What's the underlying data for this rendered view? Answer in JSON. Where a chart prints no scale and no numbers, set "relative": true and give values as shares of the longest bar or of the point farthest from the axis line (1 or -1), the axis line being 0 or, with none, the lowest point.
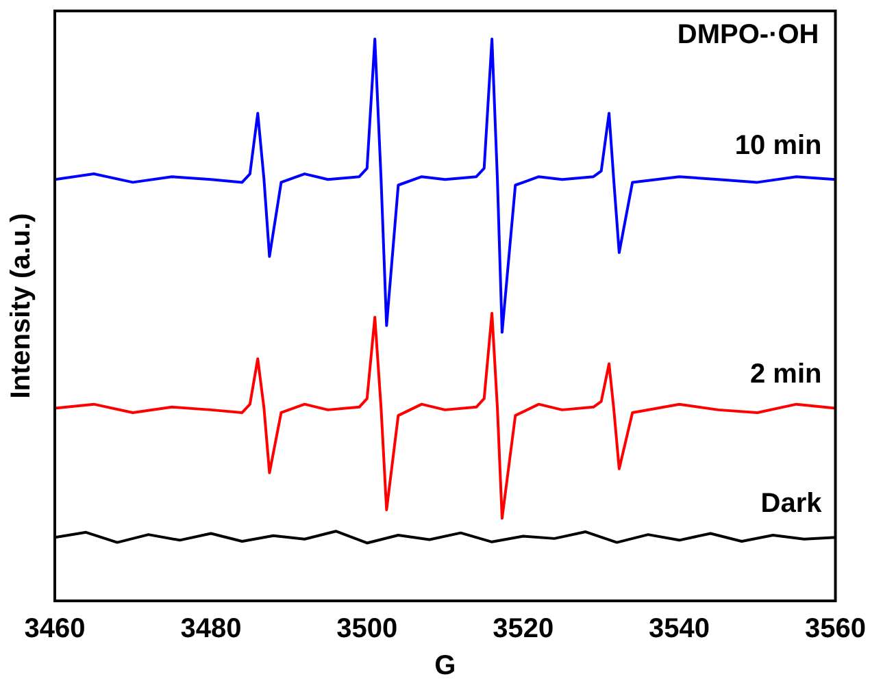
{
  "chart_data": {
    "type": "line",
    "relative": true,
    "xlabel": "G",
    "ylabel": "Intensity (a.u.)",
    "annotations": [
      "DMPO-·OH"
    ],
    "xlim": [
      3460,
      3560
    ],
    "xticks": [
      3460,
      3480,
      3500,
      3520,
      3540,
      3560
    ],
    "grid": false,
    "legend": false,
    "marker": "none",
    "line_style": "solid",
    "series": [
      {
        "name": "10 min",
        "color": "#0000ff",
        "x": [
          3460,
          3465,
          3470,
          3475,
          3480,
          3484,
          3485,
          3486,
          3486.8,
          3487.5,
          3489,
          3492,
          3495,
          3499,
          3500,
          3501,
          3501.8,
          3502.5,
          3504,
          3507,
          3510,
          3514,
          3515,
          3516,
          3516.7,
          3517.3,
          3519,
          3522,
          3525,
          3529,
          3530,
          3531,
          3531.6,
          3532.3,
          3534,
          3540,
          3545,
          3550,
          3555,
          3560
        ],
        "values": [
          0.75,
          0.76,
          0.745,
          0.755,
          0.75,
          0.745,
          0.76,
          0.868,
          0.75,
          0.613,
          0.745,
          0.76,
          0.75,
          0.755,
          0.77,
          1.0,
          0.75,
          0.49,
          0.74,
          0.755,
          0.75,
          0.755,
          0.77,
          1.0,
          0.75,
          0.478,
          0.74,
          0.755,
          0.75,
          0.755,
          0.765,
          0.868,
          0.75,
          0.62,
          0.745,
          0.755,
          0.75,
          0.745,
          0.755,
          0.75
        ]
      },
      {
        "name": "2 min",
        "color": "#ff0000",
        "x": [
          3460,
          3465,
          3470,
          3475,
          3480,
          3484,
          3485,
          3486,
          3486.8,
          3487.5,
          3489,
          3492,
          3495,
          3499,
          3500,
          3501,
          3501.8,
          3502.5,
          3504,
          3507,
          3510,
          3514,
          3515,
          3516,
          3516.7,
          3517.3,
          3519,
          3522,
          3525,
          3529,
          3530,
          3531,
          3531.6,
          3532.3,
          3534,
          3540,
          3545,
          3550,
          3555,
          3560
        ],
        "values": [
          0.343,
          0.35,
          0.335,
          0.345,
          0.34,
          0.335,
          0.35,
          0.431,
          0.343,
          0.228,
          0.335,
          0.35,
          0.34,
          0.345,
          0.36,
          0.505,
          0.343,
          0.162,
          0.33,
          0.35,
          0.34,
          0.345,
          0.36,
          0.512,
          0.343,
          0.147,
          0.33,
          0.35,
          0.34,
          0.345,
          0.355,
          0.422,
          0.343,
          0.235,
          0.335,
          0.35,
          0.34,
          0.335,
          0.35,
          0.343
        ]
      },
      {
        "name": "Dark",
        "color": "#000000",
        "x": [
          3460,
          3464,
          3468,
          3472,
          3476,
          3480,
          3484,
          3488,
          3492,
          3496,
          3500,
          3504,
          3508,
          3512,
          3516,
          3520,
          3524,
          3528,
          3532,
          3536,
          3540,
          3544,
          3548,
          3552,
          3556,
          3560
        ],
        "values": [
          0.113,
          0.122,
          0.104,
          0.118,
          0.108,
          0.12,
          0.106,
          0.116,
          0.11,
          0.124,
          0.103,
          0.117,
          0.109,
          0.121,
          0.105,
          0.115,
          0.111,
          0.123,
          0.104,
          0.118,
          0.108,
          0.12,
          0.106,
          0.117,
          0.11,
          0.113
        ]
      }
    ]
  }
}
